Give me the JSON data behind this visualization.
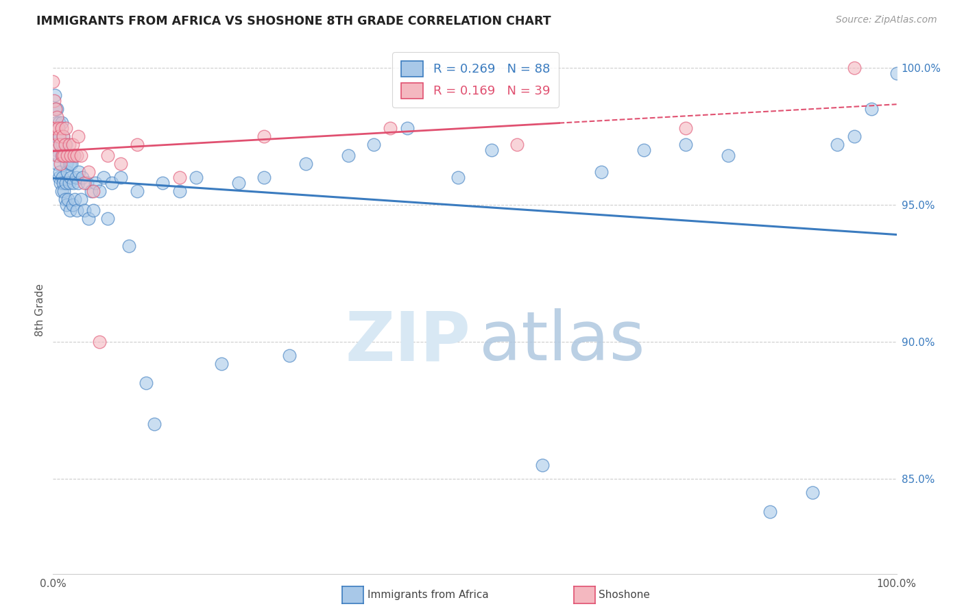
{
  "title": "IMMIGRANTS FROM AFRICA VS SHOSHONE 8TH GRADE CORRELATION CHART",
  "source": "Source: ZipAtlas.com",
  "ylabel": "8th Grade",
  "xlim": [
    0.0,
    1.0
  ],
  "ylim": [
    0.815,
    1.008
  ],
  "yticks": [
    0.85,
    0.9,
    0.95,
    1.0
  ],
  "ytick_labels": [
    "85.0%",
    "90.0%",
    "95.0%",
    "100.0%"
  ],
  "blue_R": 0.269,
  "blue_N": 88,
  "pink_R": 0.169,
  "pink_N": 39,
  "blue_color": "#a8c8e8",
  "pink_color": "#f4b8c0",
  "blue_line_color": "#3a7bbf",
  "pink_line_color": "#e05070",
  "legend_label_blue": "Immigrants from Africa",
  "legend_label_pink": "Shoshone",
  "blue_x": [
    0.002,
    0.003,
    0.003,
    0.004,
    0.004,
    0.005,
    0.005,
    0.005,
    0.006,
    0.006,
    0.007,
    0.007,
    0.008,
    0.008,
    0.009,
    0.009,
    0.01,
    0.01,
    0.01,
    0.011,
    0.011,
    0.012,
    0.012,
    0.013,
    0.013,
    0.014,
    0.014,
    0.015,
    0.015,
    0.016,
    0.016,
    0.017,
    0.018,
    0.018,
    0.019,
    0.02,
    0.02,
    0.021,
    0.022,
    0.023,
    0.024,
    0.025,
    0.026,
    0.027,
    0.028,
    0.03,
    0.031,
    0.033,
    0.035,
    0.037,
    0.04,
    0.042,
    0.045,
    0.048,
    0.05,
    0.055,
    0.06,
    0.065,
    0.07,
    0.08,
    0.09,
    0.1,
    0.11,
    0.12,
    0.13,
    0.15,
    0.17,
    0.2,
    0.22,
    0.25,
    0.28,
    0.3,
    0.35,
    0.38,
    0.42,
    0.48,
    0.52,
    0.58,
    0.65,
    0.7,
    0.75,
    0.8,
    0.85,
    0.9,
    0.93,
    0.95,
    0.97,
    1.0
  ],
  "blue_y": [
    0.99,
    0.985,
    0.975,
    0.98,
    0.97,
    0.985,
    0.975,
    0.965,
    0.978,
    0.968,
    0.98,
    0.96,
    0.975,
    0.962,
    0.972,
    0.958,
    0.98,
    0.968,
    0.955,
    0.972,
    0.96,
    0.975,
    0.958,
    0.97,
    0.955,
    0.968,
    0.952,
    0.972,
    0.958,
    0.965,
    0.95,
    0.962,
    0.968,
    0.952,
    0.958,
    0.965,
    0.948,
    0.96,
    0.965,
    0.95,
    0.958,
    0.968,
    0.952,
    0.96,
    0.948,
    0.958,
    0.962,
    0.952,
    0.96,
    0.948,
    0.958,
    0.945,
    0.955,
    0.948,
    0.958,
    0.955,
    0.96,
    0.945,
    0.958,
    0.96,
    0.935,
    0.955,
    0.885,
    0.87,
    0.958,
    0.955,
    0.96,
    0.892,
    0.958,
    0.96,
    0.895,
    0.965,
    0.968,
    0.972,
    0.978,
    0.96,
    0.97,
    0.855,
    0.962,
    0.97,
    0.972,
    0.968,
    0.838,
    0.845,
    0.972,
    0.975,
    0.985,
    0.998
  ],
  "pink_x": [
    0.0,
    0.0,
    0.001,
    0.002,
    0.003,
    0.004,
    0.005,
    0.005,
    0.006,
    0.007,
    0.008,
    0.009,
    0.01,
    0.011,
    0.012,
    0.013,
    0.014,
    0.015,
    0.017,
    0.019,
    0.021,
    0.023,
    0.025,
    0.028,
    0.03,
    0.033,
    0.037,
    0.042,
    0.048,
    0.055,
    0.065,
    0.08,
    0.1,
    0.15,
    0.25,
    0.4,
    0.55,
    0.75,
    0.95
  ],
  "pink_y": [
    0.995,
    0.978,
    0.988,
    0.978,
    0.985,
    0.972,
    0.982,
    0.968,
    0.978,
    0.975,
    0.972,
    0.965,
    0.978,
    0.968,
    0.975,
    0.968,
    0.972,
    0.978,
    0.968,
    0.972,
    0.968,
    0.972,
    0.968,
    0.968,
    0.975,
    0.968,
    0.958,
    0.962,
    0.955,
    0.9,
    0.968,
    0.965,
    0.972,
    0.96,
    0.975,
    0.978,
    0.972,
    0.978,
    1.0
  ]
}
